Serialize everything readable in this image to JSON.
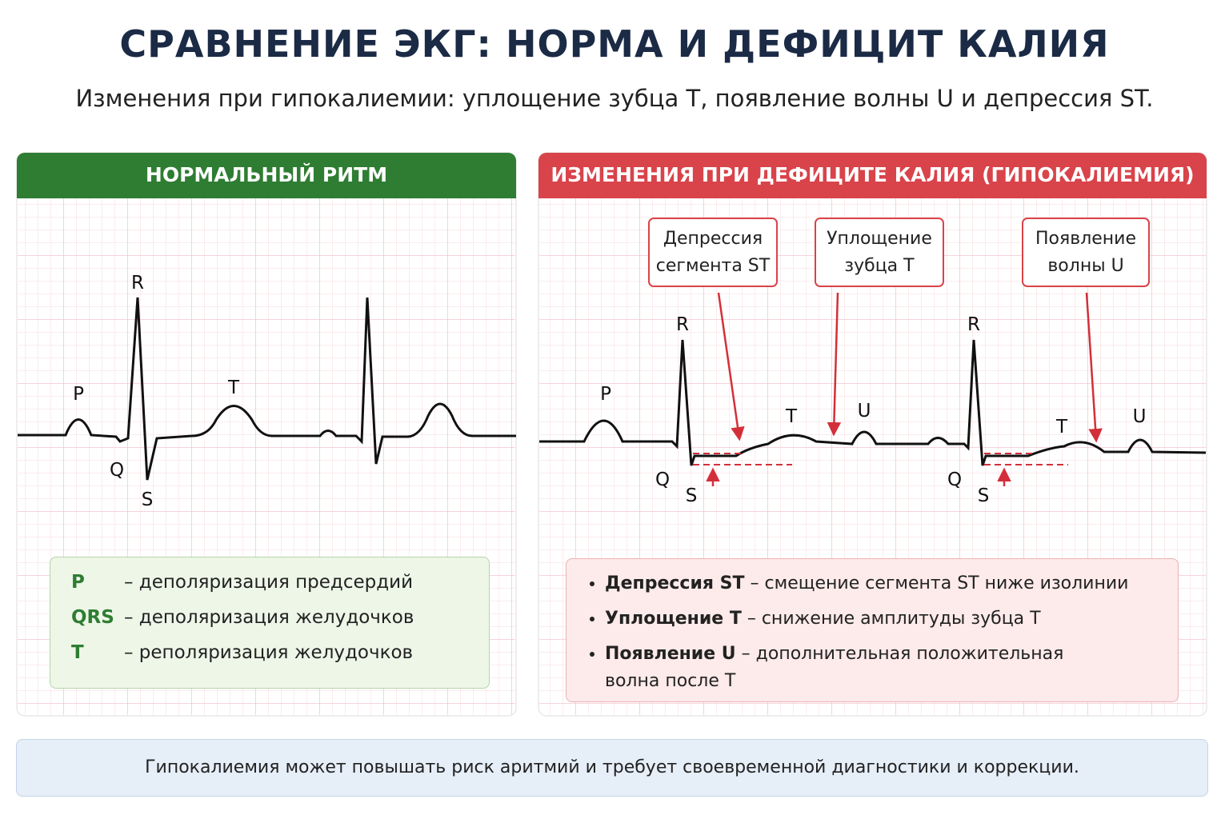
{
  "header": {
    "title": "СРАВНЕНИЕ ЭКГ: НОРМА И ДЕФИЦИТ КАЛИЯ",
    "subtitle": "Изменения при гипокалиемии: уплощение зубца T, появление волны U и депрессия ST."
  },
  "normal": {
    "title": "НОРМАЛЬНЫЙ РИТМ",
    "wave_labels": [
      "P",
      "R",
      "Q",
      "S",
      "T"
    ],
    "legend": [
      {
        "term": "P",
        "text": "–    деполяризация предсердий"
      },
      {
        "term": "QRS",
        "text": "– деполяризация желудочков"
      },
      {
        "term": "T",
        "text": "–    реполяризация желудочков"
      }
    ]
  },
  "hypokalemia": {
    "title": "ИЗМЕНЕНИЯ ПРИ ДЕФИЦИТЕ КАЛИЯ (ГИПОКАЛИЕМИЯ)",
    "callouts": [
      [
        "Депрессия",
        "сегмента ST"
      ],
      [
        "Уплощение",
        "зубца T"
      ],
      [
        "Появление",
        "волны U"
      ]
    ],
    "wave_labels": [
      "P",
      "R",
      "Q",
      "S",
      "T",
      "U",
      "R",
      "Q",
      "S",
      "T",
      "U"
    ],
    "bullets": [
      {
        "term": "Депрессия ST",
        "text": "– смещение сегмента ST ниже изолинии"
      },
      {
        "term": "Уплощение T",
        "text": "– снижение амплитуды зубца T"
      },
      {
        "term": "Появление U",
        "text": "– дополнительная положительная волна после T"
      }
    ]
  },
  "footer": "Гипокалиемия может повышать риск аритмий и требует своевременной диагностики и коррекции."
}
